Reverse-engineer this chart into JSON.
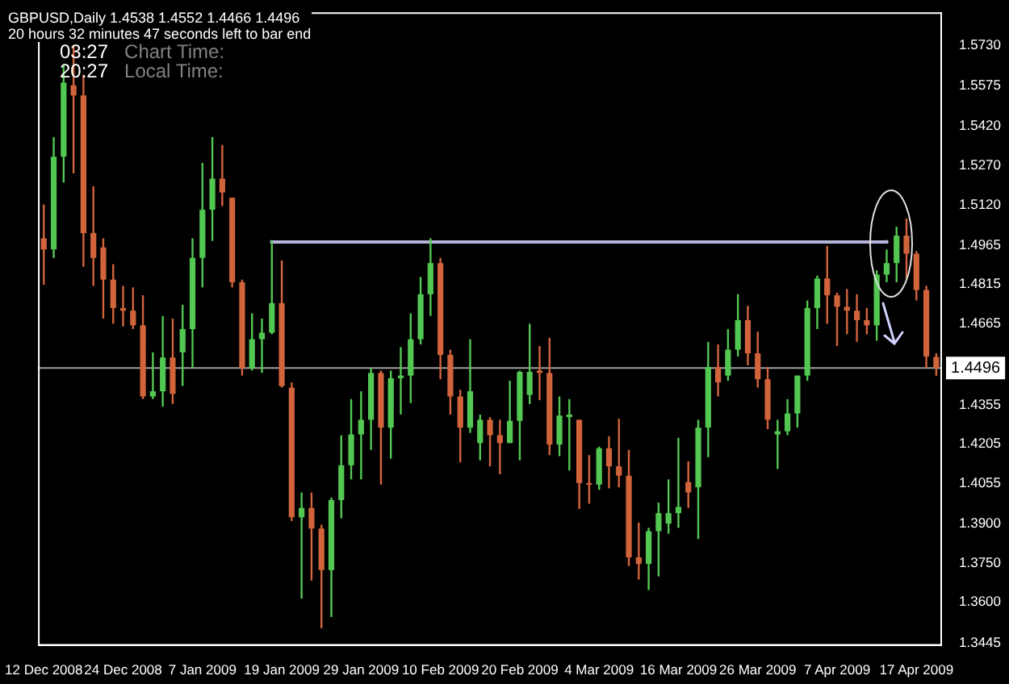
{
  "chart_data": {
    "type": "candlestick",
    "title": "GBPUSD,Daily  1.4538 1.4552 1.4466 1.4496",
    "subtitle": "20 hours 32 minutes 47 seconds left to bar end",
    "annotations": [
      "03:27",
      "Chart Time:",
      "20:27",
      "Local Time:"
    ],
    "categories": [
      "12 Dec 2008",
      null,
      null,
      null,
      null,
      null,
      null,
      null,
      "24 Dec 2008",
      null,
      null,
      null,
      null,
      null,
      null,
      null,
      "7 Jan 2009",
      null,
      null,
      null,
      null,
      null,
      null,
      null,
      "19 Jan 2009",
      null,
      null,
      null,
      null,
      null,
      null,
      null,
      "29 Jan 2009",
      null,
      null,
      null,
      null,
      null,
      null,
      null,
      "10 Feb 2009",
      null,
      null,
      null,
      null,
      null,
      null,
      null,
      "20 Feb 2009",
      null,
      null,
      null,
      null,
      null,
      null,
      null,
      "4 Mar 2009",
      null,
      null,
      null,
      null,
      null,
      null,
      null,
      "16 Mar 2009",
      null,
      null,
      null,
      null,
      null,
      null,
      null,
      "26 Mar 2009",
      null,
      null,
      null,
      null,
      null,
      null,
      null,
      "7 Apr 2009",
      null,
      null,
      null,
      null,
      null,
      null,
      null,
      "17 Apr 2009",
      null,
      null
    ],
    "ohlc": [
      [
        1.4992,
        1.5121,
        1.4814,
        1.4949
      ],
      [
        1.4949,
        1.5379,
        1.4917,
        1.5304
      ],
      [
        1.5304,
        1.5651,
        1.5205,
        1.5587
      ],
      [
        1.5577,
        1.573,
        1.524,
        1.5538
      ],
      [
        1.5538,
        1.5617,
        1.4883,
        1.5012
      ],
      [
        1.5012,
        1.5191,
        1.481,
        1.4917
      ],
      [
        1.4957,
        1.4992,
        1.4685,
        1.4834
      ],
      [
        1.4834,
        1.4893,
        1.4665,
        1.4725
      ],
      [
        1.4725,
        1.481,
        1.4655,
        1.4715
      ],
      [
        1.4715,
        1.4804,
        1.4645,
        1.4659
      ],
      [
        1.4659,
        1.4774,
        1.4377,
        1.4387
      ],
      [
        1.4387,
        1.4556,
        1.4377,
        1.4407
      ],
      [
        1.4407,
        1.4695,
        1.4348,
        1.4536
      ],
      [
        1.4536,
        1.4685,
        1.4358,
        1.4397
      ],
      [
        1.4556,
        1.4738,
        1.4427,
        1.4645
      ],
      [
        1.4645,
        1.4992,
        1.4496,
        1.4917
      ],
      [
        1.4917,
        1.528,
        1.4804,
        1.5101
      ],
      [
        1.5101,
        1.5379,
        1.4982,
        1.522
      ],
      [
        1.522,
        1.5349,
        1.5115,
        1.5167
      ],
      [
        1.5147,
        1.5147,
        1.4804,
        1.4824
      ],
      [
        1.4824,
        1.4834,
        1.4467,
        1.4496
      ],
      [
        1.4496,
        1.4705,
        1.4486,
        1.4606
      ],
      [
        1.4606,
        1.4685,
        1.4477,
        1.4631
      ],
      [
        1.4631,
        1.4982,
        1.4625,
        1.4744
      ],
      [
        1.4744,
        1.4907,
        1.4421,
        1.4427
      ],
      [
        1.4421,
        1.4441,
        1.3911,
        1.3925
      ],
      [
        1.3925,
        1.402,
        1.3614,
        1.3961
      ],
      [
        1.3961,
        1.402,
        1.3683,
        1.3882
      ],
      [
        1.3882,
        1.3897,
        1.3501,
        1.3723
      ],
      [
        1.3723,
        1.4001,
        1.3544,
        1.3991
      ],
      [
        1.3991,
        1.4239,
        1.3921,
        1.4124
      ],
      [
        1.4124,
        1.4377,
        1.407,
        1.4242
      ],
      [
        1.4242,
        1.4407,
        1.407,
        1.4298
      ],
      [
        1.4298,
        1.4496,
        1.4183,
        1.4477
      ],
      [
        1.4477,
        1.4486,
        1.405,
        1.4268
      ],
      [
        1.4268,
        1.4486,
        1.4149,
        1.4457
      ],
      [
        1.4457,
        1.4576,
        1.4318,
        1.4467
      ],
      [
        1.4467,
        1.4705,
        1.4362,
        1.4606
      ],
      [
        1.4606,
        1.4844,
        1.4586,
        1.4778
      ],
      [
        1.4778,
        1.4992,
        1.4695,
        1.4897
      ],
      [
        1.4897,
        1.4917,
        1.4453,
        1.4546
      ],
      [
        1.4546,
        1.4566,
        1.4318,
        1.4387
      ],
      [
        1.4387,
        1.4413,
        1.4135,
        1.4268
      ],
      [
        1.4268,
        1.4606,
        1.4248,
        1.4407
      ],
      [
        1.4209,
        1.4318,
        1.4143,
        1.4298
      ],
      [
        1.4298,
        1.4308,
        1.412,
        1.4239
      ],
      [
        1.4239,
        1.4298,
        1.409,
        1.4209
      ],
      [
        1.4209,
        1.4447,
        1.4209,
        1.4294
      ],
      [
        1.4294,
        1.4486,
        1.4143,
        1.4481
      ],
      [
        1.4393,
        1.4665,
        1.4358,
        1.4481
      ],
      [
        1.4486,
        1.458,
        1.4373,
        1.4477
      ],
      [
        1.4477,
        1.4611,
        1.4163,
        1.4203
      ],
      [
        1.4203,
        1.4387,
        1.4159,
        1.4314
      ],
      [
        1.4308,
        1.4377,
        1.4104,
        1.4318
      ],
      [
        1.4298,
        1.4298,
        1.3957,
        1.4056
      ],
      [
        1.4056,
        1.4163,
        1.3977,
        1.405
      ],
      [
        1.405,
        1.4195,
        1.403,
        1.4189
      ],
      [
        1.4189,
        1.4235,
        1.4036,
        1.412
      ],
      [
        1.412,
        1.4302,
        1.404,
        1.4084
      ],
      [
        1.4084,
        1.4183,
        1.3739,
        1.3772
      ],
      [
        1.3772,
        1.3905,
        1.3687,
        1.3747
      ],
      [
        1.3747,
        1.3885,
        1.3647,
        1.3872
      ],
      [
        1.3872,
        1.3981,
        1.3699,
        1.3941
      ],
      [
        1.3901,
        1.407,
        1.3862,
        1.3941
      ],
      [
        1.3941,
        1.4229,
        1.3885,
        1.3965
      ],
      [
        1.406,
        1.4139,
        1.3961,
        1.402
      ],
      [
        1.404,
        1.4298,
        1.3842,
        1.4268
      ],
      [
        1.4268,
        1.4596,
        1.4155,
        1.45
      ],
      [
        1.45,
        1.4586,
        1.4387,
        1.4441
      ],
      [
        1.4467,
        1.4645,
        1.4447,
        1.4566
      ],
      [
        1.4566,
        1.4778,
        1.454,
        1.4679
      ],
      [
        1.4679,
        1.4734,
        1.4506,
        1.4552
      ],
      [
        1.4552,
        1.4635,
        1.4421,
        1.4453
      ],
      [
        1.4453,
        1.45,
        1.4262,
        1.4298
      ],
      [
        1.4242,
        1.4298,
        1.411,
        1.4254
      ],
      [
        1.4254,
        1.4377,
        1.4239,
        1.4322
      ],
      [
        1.4322,
        1.4467,
        1.4268,
        1.4467
      ],
      [
        1.4467,
        1.4754,
        1.4447,
        1.4725
      ],
      [
        1.4725,
        1.4849,
        1.4645,
        1.4838
      ],
      [
        1.4838,
        1.4963,
        1.4665,
        1.4774
      ],
      [
        1.4774,
        1.4784,
        1.458,
        1.473
      ],
      [
        1.473,
        1.4798,
        1.4625,
        1.4715
      ],
      [
        1.4715,
        1.4778,
        1.4596,
        1.4679
      ],
      [
        1.4679,
        1.4725,
        1.4625,
        1.4659
      ],
      [
        1.4659,
        1.4869,
        1.46,
        1.4853
      ],
      [
        1.4853,
        1.4949,
        1.4824,
        1.4897
      ],
      [
        1.4897,
        1.5036,
        1.4824,
        1.5002
      ],
      [
        1.5002,
        1.5068,
        1.4838,
        1.4933
      ],
      [
        1.4933,
        1.4943,
        1.4754,
        1.4794
      ],
      [
        1.4794,
        1.481,
        1.4496,
        1.454
      ],
      [
        1.4538,
        1.4552,
        1.4466,
        1.4496
      ]
    ],
    "colors": [
      "#d2643c",
      "#52c852",
      "#52c852",
      "#d2643c",
      "#d2643c",
      "#d2643c",
      "#d2643c",
      "#d2643c",
      "#d2643c",
      "#d2643c",
      "#d2643c",
      "#52c852",
      "#52c852",
      "#d2643c",
      "#52c852",
      "#52c852",
      "#52c852",
      "#52c852",
      "#d2643c",
      "#d2643c",
      "#d2643c",
      "#52c852",
      "#52c852",
      "#52c852",
      "#d2643c",
      "#d2643c",
      "#52c852",
      "#d2643c",
      "#d2643c",
      "#52c852",
      "#52c852",
      "#52c852",
      "#52c852",
      "#52c852",
      "#d2643c",
      "#52c852",
      "#52c852",
      "#52c852",
      "#52c852",
      "#52c852",
      "#d2643c",
      "#d2643c",
      "#d2643c",
      "#52c852",
      "#52c852",
      "#d2643c",
      "#d2643c",
      "#52c852",
      "#52c852",
      "#52c852",
      "#d2643c",
      "#d2643c",
      "#52c852",
      "#52c852",
      "#d2643c",
      "#d2643c",
      "#52c852",
      "#d2643c",
      "#d2643c",
      "#d2643c",
      "#d2643c",
      "#52c852",
      "#52c852",
      "#52c852",
      "#52c852",
      "#d2643c",
      "#52c852",
      "#52c852",
      "#d2643c",
      "#52c852",
      "#52c852",
      "#d2643c",
      "#d2643c",
      "#d2643c",
      "#52c852",
      "#52c852",
      "#52c852",
      "#52c852",
      "#52c852",
      "#d2643c",
      "#d2643c",
      "#d2643c",
      "#d2643c",
      "#d2643c",
      "#52c852",
      "#52c852",
      "#52c852",
      "#d2643c",
      "#d2643c",
      "#d2643c",
      "#d2643c"
    ],
    "series": [
      {
        "type": "line",
        "color": "#b4b4dc",
        "values": [
          null,
          null,
          null,
          null,
          null,
          null,
          null,
          null,
          null,
          null,
          null,
          null,
          null,
          null,
          null,
          null,
          null,
          null,
          null,
          null,
          null,
          null,
          null,
          1.4978,
          null,
          null,
          null,
          null,
          null,
          null,
          null,
          null,
          null,
          null,
          null,
          null,
          null,
          null,
          null,
          null,
          null,
          null,
          null,
          null,
          null,
          null,
          null,
          null,
          null,
          null,
          null,
          null,
          null,
          null,
          null,
          null,
          null,
          null,
          null,
          null,
          null,
          null,
          null,
          null,
          null,
          null,
          null,
          null,
          null,
          null,
          null,
          null,
          null,
          null,
          null,
          null,
          null,
          null,
          null,
          null,
          null,
          null,
          null,
          null,
          null,
          1.4978,
          null,
          null,
          null,
          null,
          null
        ]
      }
    ],
    "ref_lines": [
      {
        "axis": "y",
        "value": 1.4496,
        "label": "1.4496",
        "color": "#a0a0a0"
      }
    ],
    "ylim": [
      1.3437,
      1.5853
    ],
    "yticks": [
      {
        "value": 1.573,
        "label": "1.5730"
      },
      {
        "value": 1.5575,
        "label": "1.5575"
      },
      {
        "value": 1.542,
        "label": "1.5420"
      },
      {
        "value": 1.527,
        "label": "1.5270"
      },
      {
        "value": 1.512,
        "label": "1.5120"
      },
      {
        "value": 1.4965,
        "label": "1.4965"
      },
      {
        "value": 1.4815,
        "label": "1.4815"
      },
      {
        "value": 1.4665,
        "label": "1.4665"
      },
      {
        "value": 1.4355,
        "label": "1.4355"
      },
      {
        "value": 1.4205,
        "label": "1.4205"
      },
      {
        "value": 1.4055,
        "label": "1.4055"
      },
      {
        "value": 1.39,
        "label": "1.3900"
      },
      {
        "value": 1.375,
        "label": "1.3750"
      },
      {
        "value": 1.36,
        "label": "1.3600"
      },
      {
        "value": 1.3445,
        "label": "1.3445"
      }
    ],
    "grid": false,
    "legend": false
  }
}
